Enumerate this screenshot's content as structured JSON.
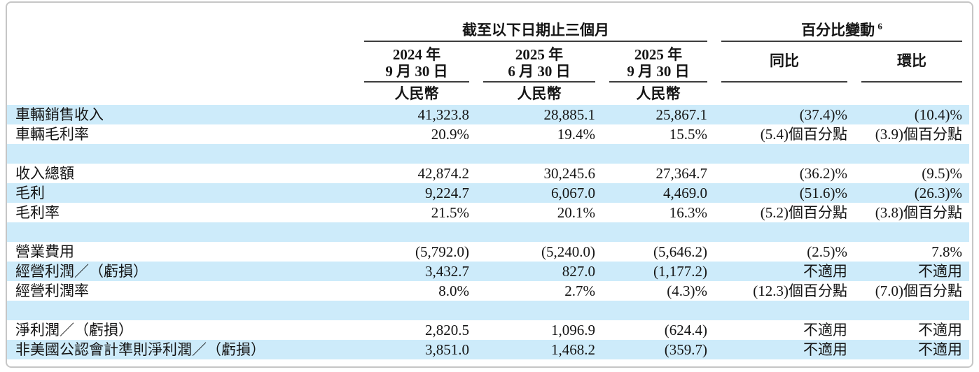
{
  "table": {
    "title_period_group": "截至以下日期止三個月",
    "title_pct_group": "百分比變動",
    "title_pct_sup": "6",
    "period_columns": [
      {
        "line1": "2024 年",
        "line2": "9 月 30 日",
        "unit": "人民幣"
      },
      {
        "line1": "2025 年",
        "line2": "6 月 30 日",
        "unit": "人民幣"
      },
      {
        "line1": "2025 年",
        "line2": "9 月 30 日",
        "unit": "人民幣"
      }
    ],
    "pct_columns": [
      {
        "label": "同比"
      },
      {
        "label": "環比"
      }
    ],
    "rows": [
      {
        "label": "車輛銷售收入",
        "v1": "41,323.8",
        "v2": "28,885.1",
        "v3": "25,867.1",
        "yoy": "(37.4)%",
        "qoq": "(10.4)%"
      },
      {
        "label": "車輛毛利率",
        "v1": "20.9%",
        "v2": "19.4%",
        "v3": "15.5%",
        "yoy": "(5.4)個百分點",
        "qoq": "(3.9)個百分點"
      },
      {
        "label": "",
        "v1": "",
        "v2": "",
        "v3": "",
        "yoy": "",
        "qoq": ""
      },
      {
        "label": "收入總額",
        "v1": "42,874.2",
        "v2": "30,245.6",
        "v3": "27,364.7",
        "yoy": "(36.2)%",
        "qoq": "(9.5)%"
      },
      {
        "label": "毛利",
        "v1": "9,224.7",
        "v2": "6,067.0",
        "v3": "4,469.0",
        "yoy": "(51.6)%",
        "qoq": "(26.3)%"
      },
      {
        "label": "毛利率",
        "v1": "21.5%",
        "v2": "20.1%",
        "v3": "16.3%",
        "yoy": "(5.2)個百分點",
        "qoq": "(3.8)個百分點"
      },
      {
        "label": "",
        "v1": "",
        "v2": "",
        "v3": "",
        "yoy": "",
        "qoq": ""
      },
      {
        "label": "營業費用",
        "v1": "(5,792.0)",
        "v2": "(5,240.0)",
        "v3": "(5,646.2)",
        "yoy": "(2.5)%",
        "qoq": "7.8%"
      },
      {
        "label": "經營利潤／（虧損）",
        "v1": "3,432.7",
        "v2": "827.0",
        "v3": "(1,177.2)",
        "yoy": "不適用",
        "qoq": "不適用"
      },
      {
        "label": "經營利潤率",
        "v1": "8.0%",
        "v2": "2.7%",
        "v3": "(4.3)%",
        "yoy": "(12.3)個百分點",
        "qoq": "(7.0)個百分點"
      },
      {
        "label": "",
        "v1": "",
        "v2": "",
        "v3": "",
        "yoy": "",
        "qoq": ""
      },
      {
        "label": "淨利潤／（虧損）",
        "v1": "2,820.5",
        "v2": "1,096.9",
        "v3": "(624.4)",
        "yoy": "不適用",
        "qoq": "不適用"
      },
      {
        "label": "非美國公認會計準則淨利潤／（虧損）",
        "v1": "3,851.0",
        "v2": "1,468.2",
        "v3": "(359.7)",
        "yoy": "不適用",
        "qoq": "不適用"
      }
    ],
    "colors": {
      "row_highlight": "#cdebfa",
      "rule_line": "#3d3d3d",
      "frame_border": "#c6c6c6"
    }
  }
}
